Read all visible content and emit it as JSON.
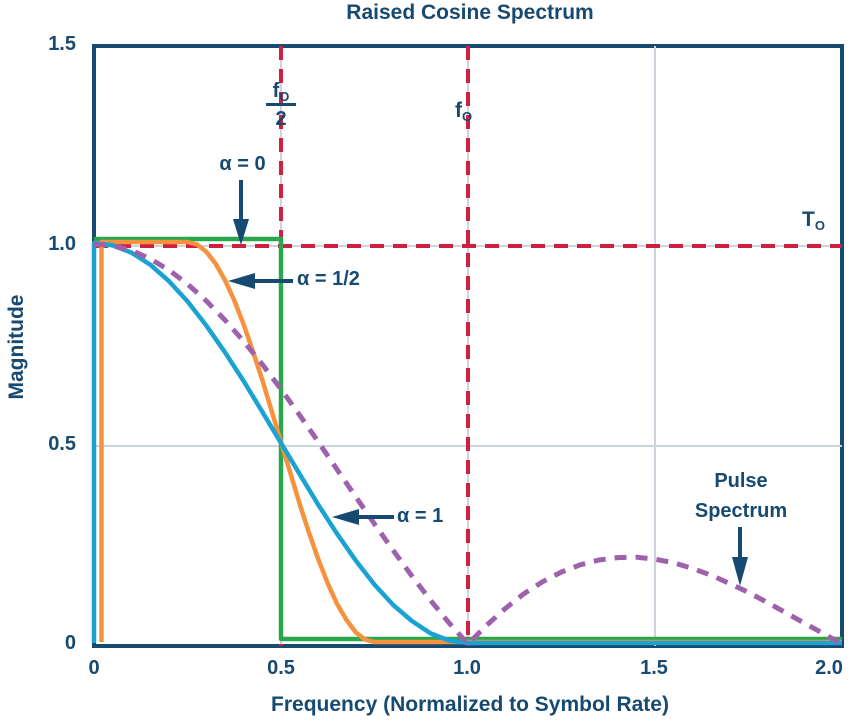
{
  "colors": {
    "navy": "#174a70",
    "red_dashed": "#d02040",
    "grid_gray": "#ccd5dd",
    "green_alpha0": "#2aa64c",
    "orange_alpha_half": "#f6913d",
    "cyan_alpha1": "#1aa3d2",
    "purple_pulse": "#9e62ad",
    "background": "#ffffff"
  },
  "annotations": {
    "alpha0": "α = 0",
    "alpha_half": "α = 1/2",
    "alpha1": "α = 1",
    "pulse": [
      "Pulse",
      "Spectrum"
    ],
    "f_half": {
      "base": "f",
      "sub": "O",
      "den": "2"
    },
    "f0": {
      "base": "f",
      "sub": "O"
    },
    "t0": {
      "base": "T",
      "sub": "O"
    }
  },
  "chart_data": {
    "type": "line",
    "title": "Raised Cosine Spectrum",
    "xlabel": "Frequency (Normalized to Symbol Rate)",
    "ylabel": "Magnitude",
    "xlim": [
      0,
      2
    ],
    "ylim": [
      0,
      1.5
    ],
    "x_ticks": [
      "0",
      "0.5",
      "1.0",
      "1.5",
      "2.0"
    ],
    "y_ticks": [
      "1.5",
      "1.0",
      "0.5",
      "0"
    ],
    "legend": "none",
    "grid": "partial",
    "reference_lines": [
      {
        "axis": "y",
        "value": 0.5,
        "style": "grid"
      },
      {
        "axis": "x",
        "value": 1.5,
        "style": "grid"
      },
      {
        "axis": "x",
        "value": 0.5,
        "style": "red-dashed",
        "label": "fO/2"
      },
      {
        "axis": "x",
        "value": 1.0,
        "style": "red-dashed",
        "label": "fO"
      },
      {
        "axis": "y",
        "value": 1.0,
        "style": "red-dashed",
        "label": "TO"
      }
    ],
    "series": [
      {
        "name": "alpha-0",
        "label": "α = 0",
        "color": "#2aa64c",
        "dash": null,
        "points": [
          [
            0,
            1
          ],
          [
            0.5,
            1
          ],
          [
            0.5,
            0
          ],
          [
            2,
            0
          ]
        ]
      },
      {
        "name": "alpha-half",
        "label": "α = 1/2",
        "color": "#f6913d",
        "dash": null,
        "points": [
          [
            0.02,
            0
          ],
          [
            0.02,
            1
          ],
          [
            0.25,
            1
          ],
          [
            0.275,
            0.994
          ],
          [
            0.3,
            0.976
          ],
          [
            0.325,
            0.946
          ],
          [
            0.35,
            0.905
          ],
          [
            0.375,
            0.854
          ],
          [
            0.4,
            0.794
          ],
          [
            0.425,
            0.727
          ],
          [
            0.45,
            0.655
          ],
          [
            0.475,
            0.578
          ],
          [
            0.5,
            0.5
          ],
          [
            0.525,
            0.422
          ],
          [
            0.55,
            0.345
          ],
          [
            0.575,
            0.273
          ],
          [
            0.6,
            0.206
          ],
          [
            0.625,
            0.146
          ],
          [
            0.65,
            0.095
          ],
          [
            0.675,
            0.055
          ],
          [
            0.7,
            0.024
          ],
          [
            0.725,
            0.006
          ],
          [
            0.75,
            0
          ],
          [
            2,
            0
          ]
        ]
      },
      {
        "name": "alpha-1",
        "label": "α = 1",
        "color": "#1aa3d2",
        "dash": null,
        "points": [
          [
            0,
            0
          ],
          [
            0,
            1
          ],
          [
            0.05,
            0.994
          ],
          [
            0.1,
            0.976
          ],
          [
            0.15,
            0.946
          ],
          [
            0.2,
            0.905
          ],
          [
            0.25,
            0.854
          ],
          [
            0.3,
            0.794
          ],
          [
            0.35,
            0.727
          ],
          [
            0.4,
            0.655
          ],
          [
            0.45,
            0.578
          ],
          [
            0.5,
            0.5
          ],
          [
            0.55,
            0.422
          ],
          [
            0.6,
            0.345
          ],
          [
            0.65,
            0.273
          ],
          [
            0.7,
            0.206
          ],
          [
            0.75,
            0.146
          ],
          [
            0.8,
            0.095
          ],
          [
            0.85,
            0.055
          ],
          [
            0.9,
            0.024
          ],
          [
            0.95,
            0.006
          ],
          [
            1,
            0
          ],
          [
            2,
            0
          ]
        ]
      },
      {
        "name": "pulse-spectrum",
        "label": "Pulse Spectrum",
        "color": "#9e62ad",
        "dash": "12 9",
        "points": [
          [
            0,
            1
          ],
          [
            0.05,
            0.996
          ],
          [
            0.1,
            0.984
          ],
          [
            0.15,
            0.963
          ],
          [
            0.2,
            0.935
          ],
          [
            0.25,
            0.9
          ],
          [
            0.3,
            0.858
          ],
          [
            0.35,
            0.81
          ],
          [
            0.4,
            0.757
          ],
          [
            0.45,
            0.699
          ],
          [
            0.5,
            0.637
          ],
          [
            0.55,
            0.572
          ],
          [
            0.6,
            0.505
          ],
          [
            0.65,
            0.436
          ],
          [
            0.7,
            0.368
          ],
          [
            0.75,
            0.3
          ],
          [
            0.8,
            0.234
          ],
          [
            0.85,
            0.17
          ],
          [
            0.9,
            0.109
          ],
          [
            0.95,
            0.052
          ],
          [
            1,
            0
          ],
          [
            1.05,
            0.047
          ],
          [
            1.1,
            0.089
          ],
          [
            1.15,
            0.126
          ],
          [
            1.2,
            0.156
          ],
          [
            1.25,
            0.18
          ],
          [
            1.3,
            0.198
          ],
          [
            1.35,
            0.21
          ],
          [
            1.4,
            0.216
          ],
          [
            1.45,
            0.217
          ],
          [
            1.5,
            0.212
          ],
          [
            1.55,
            0.203
          ],
          [
            1.6,
            0.189
          ],
          [
            1.65,
            0.172
          ],
          [
            1.7,
            0.151
          ],
          [
            1.75,
            0.129
          ],
          [
            1.8,
            0.104
          ],
          [
            1.85,
            0.078
          ],
          [
            1.9,
            0.052
          ],
          [
            1.95,
            0.026
          ],
          [
            2,
            0
          ]
        ]
      }
    ]
  }
}
